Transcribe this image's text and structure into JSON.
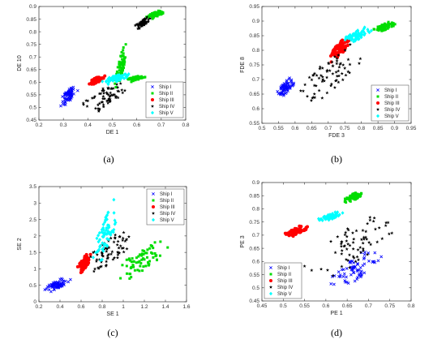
{
  "chart_data": [
    {
      "type": "scatter",
      "panel_label": "(a)",
      "xlabel": "DE 1",
      "ylabel": "DE 10",
      "xlim": [
        0.2,
        0.8
      ],
      "ylim": [
        0.45,
        0.9
      ],
      "xticks": [
        "0.2",
        "0.3",
        "0.4",
        "0.5",
        "0.6",
        "0.7",
        "0.8"
      ],
      "yticks": [
        "0.45",
        "0.5",
        "0.55",
        "0.6",
        "0.65",
        "0.7",
        "0.75",
        "0.8",
        "0.85",
        "0.9"
      ],
      "legend": "bottom-right",
      "grid": false,
      "series": [
        {
          "name": "Ship I",
          "marker": "x",
          "color": "#0000ff",
          "clusters": [
            {
              "x": [
                0.28,
                0.36
              ],
              "y": [
                0.5,
                0.59
              ]
            }
          ]
        },
        {
          "name": "Ship II",
          "marker": "square",
          "color": "#00dd00",
          "clusters": [
            {
              "x": [
                0.51,
                0.56
              ],
              "y": [
                0.58,
                0.75
              ]
            },
            {
              "x": [
                0.55,
                0.64
              ],
              "y": [
                0.6,
                0.63
              ]
            },
            {
              "x": [
                0.64,
                0.72
              ],
              "y": [
                0.85,
                0.89
              ]
            }
          ]
        },
        {
          "name": "Ship III",
          "marker": "circle",
          "color": "#ff0000",
          "clusters": [
            {
              "x": [
                0.4,
                0.48
              ],
              "y": [
                0.59,
                0.63
              ]
            }
          ]
        },
        {
          "name": "Ship IV",
          "marker": "star",
          "color": "#000000",
          "clusters": [
            {
              "x": [
                0.37,
                0.58
              ],
              "y": [
                0.47,
                0.62
              ]
            },
            {
              "x": [
                0.59,
                0.66
              ],
              "y": [
                0.81,
                0.86
              ]
            }
          ]
        },
        {
          "name": "Ship V",
          "marker": "diamond",
          "color": "#00ffff",
          "clusters": [
            {
              "x": [
                0.45,
                0.58
              ],
              "y": [
                0.59,
                0.64
              ]
            }
          ]
        }
      ]
    },
    {
      "type": "scatter",
      "panel_label": "(b)",
      "xlabel": "FDE 3",
      "ylabel": "FDE 8",
      "xlim": [
        0.5,
        0.95
      ],
      "ylim": [
        0.55,
        0.95
      ],
      "xticks": [
        "0.5",
        "0.55",
        "0.6",
        "0.65",
        "0.7",
        "0.75",
        "0.8",
        "0.85",
        "0.9",
        "0.95"
      ],
      "yticks": [
        "0.55",
        "0.6",
        "0.65",
        "0.7",
        "0.75",
        "0.8",
        "0.85",
        "0.9",
        "0.95"
      ],
      "legend": "bottom-right",
      "grid": false,
      "series": [
        {
          "name": "Ship I",
          "marker": "x",
          "color": "#0000ff",
          "clusters": [
            {
              "x": [
                0.54,
                0.6
              ],
              "y": [
                0.63,
                0.71
              ]
            }
          ]
        },
        {
          "name": "Ship II",
          "marker": "square",
          "color": "#00dd00",
          "clusters": [
            {
              "x": [
                0.83,
                0.91
              ],
              "y": [
                0.86,
                0.9
              ]
            }
          ]
        },
        {
          "name": "Ship III",
          "marker": "circle",
          "color": "#ff0000",
          "clusters": [
            {
              "x": [
                0.7,
                0.77
              ],
              "y": [
                0.76,
                0.85
              ]
            }
          ]
        },
        {
          "name": "Ship IV",
          "marker": "star",
          "color": "#000000",
          "clusters": [
            {
              "x": [
                0.6,
                0.8
              ],
              "y": [
                0.6,
                0.82
              ]
            }
          ]
        },
        {
          "name": "Ship V",
          "marker": "diamond",
          "color": "#00ffff",
          "clusters": [
            {
              "x": [
                0.74,
                0.83
              ],
              "y": [
                0.82,
                0.88
              ]
            }
          ]
        }
      ]
    },
    {
      "type": "scatter",
      "panel_label": "(c)",
      "xlabel": "SE 1",
      "ylabel": "SE 2",
      "xlim": [
        0.2,
        1.6
      ],
      "ylim": [
        0,
        3.5
      ],
      "xticks": [
        "0.2",
        "0.4",
        "0.6",
        "0.8",
        "1",
        "1.2",
        "1.4",
        "1.6"
      ],
      "yticks": [
        "0",
        "0.5",
        "1",
        "1.5",
        "2",
        "2.5",
        "3",
        "3.5"
      ],
      "legend": "top-right",
      "grid": false,
      "series": [
        {
          "name": "Ship I",
          "marker": "x",
          "color": "#0000ff",
          "clusters": [
            {
              "x": [
                0.25,
                0.5
              ],
              "y": [
                0.3,
                0.75
              ]
            }
          ]
        },
        {
          "name": "Ship II",
          "marker": "square",
          "color": "#00dd00",
          "clusters": [
            {
              "x": [
                0.9,
                1.45
              ],
              "y": [
                0.65,
                1.9
              ]
            }
          ]
        },
        {
          "name": "Ship III",
          "marker": "circle",
          "color": "#ff0000",
          "clusters": [
            {
              "x": [
                0.55,
                0.7
              ],
              "y": [
                0.8,
                1.5
              ]
            }
          ]
        },
        {
          "name": "Ship IV",
          "marker": "star",
          "color": "#000000",
          "clusters": [
            {
              "x": [
                0.6,
                1.15
              ],
              "y": [
                0.8,
                2.3
              ]
            }
          ]
        },
        {
          "name": "Ship V",
          "marker": "diamond",
          "color": "#00ffff",
          "clusters": [
            {
              "x": [
                0.7,
                0.95
              ],
              "y": [
                0.9,
                3.1
              ]
            }
          ]
        }
      ]
    },
    {
      "type": "scatter",
      "panel_label": "(d)",
      "xlabel": "PE 1",
      "ylabel": "PE 3",
      "xlim": [
        0.45,
        0.8
      ],
      "ylim": [
        0.45,
        0.9
      ],
      "xticks": [
        "0.45",
        "0.5",
        "0.55",
        "0.6",
        "0.65",
        "0.7",
        "0.75",
        "0.8"
      ],
      "yticks": [
        "0.45",
        "0.5",
        "0.55",
        "0.6",
        "0.65",
        "0.7",
        "0.75",
        "0.8",
        "0.85",
        "0.9"
      ],
      "legend": "bottom-left",
      "grid": false,
      "series": [
        {
          "name": "Ship I",
          "marker": "x",
          "color": "#0000ff",
          "clusters": [
            {
              "x": [
                0.6,
                0.73
              ],
              "y": [
                0.48,
                0.65
              ]
            }
          ]
        },
        {
          "name": "Ship II",
          "marker": "square",
          "color": "#00dd00",
          "clusters": [
            {
              "x": [
                0.64,
                0.69
              ],
              "y": [
                0.82,
                0.87
              ]
            }
          ]
        },
        {
          "name": "Ship III",
          "marker": "circle",
          "color": "#ff0000",
          "clusters": [
            {
              "x": [
                0.5,
                0.56
              ],
              "y": [
                0.69,
                0.74
              ]
            }
          ]
        },
        {
          "name": "Ship IV",
          "marker": "star",
          "color": "#000000",
          "clusters": [
            {
              "x": [
                0.55,
                0.78
              ],
              "y": [
                0.52,
                0.81
              ]
            }
          ]
        },
        {
          "name": "Ship V",
          "marker": "diamond",
          "color": "#00ffff",
          "clusters": [
            {
              "x": [
                0.58,
                0.64
              ],
              "y": [
                0.75,
                0.79
              ]
            }
          ]
        }
      ]
    }
  ]
}
